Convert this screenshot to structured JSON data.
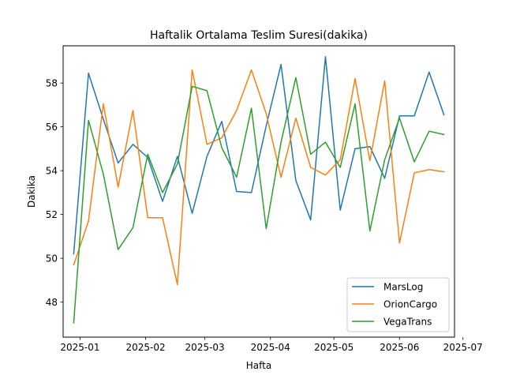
{
  "chart_data": {
    "type": "line",
    "title": "Haftalik Ortalama Teslim Suresi(dakika)",
    "xlabel": "Hafta",
    "ylabel": "Dakika",
    "x": [
      "2024-12-29",
      "2025-01-05",
      "2025-01-12",
      "2025-01-19",
      "2025-01-26",
      "2025-02-02",
      "2025-02-09",
      "2025-02-16",
      "2025-02-23",
      "2025-03-02",
      "2025-03-09",
      "2025-03-16",
      "2025-03-23",
      "2025-03-30",
      "2025-04-06",
      "2025-04-13",
      "2025-04-20",
      "2025-04-27",
      "2025-05-04",
      "2025-05-11",
      "2025-05-18",
      "2025-05-25",
      "2025-06-01",
      "2025-06-08",
      "2025-06-15",
      "2025-06-22"
    ],
    "x_ticks": [
      "2025-01",
      "2025-02",
      "2025-03",
      "2025-04",
      "2025-05",
      "2025-06",
      "2025-07"
    ],
    "x_tick_dates": [
      "2025-01-01",
      "2025-02-01",
      "2025-03-01",
      "2025-04-01",
      "2025-05-01",
      "2025-06-01",
      "2025-07-01"
    ],
    "y_ticks": [
      48,
      50,
      52,
      54,
      56,
      58
    ],
    "xlim": [
      "2024-12-24",
      "2025-06-27"
    ],
    "ylim": [
      46.4,
      59.7
    ],
    "grid": false,
    "legend_position": "lower right",
    "series": [
      {
        "name": "MarsLog",
        "color": "#1f77b4",
        "values": [
          50.2,
          58.45,
          56.35,
          54.35,
          55.2,
          54.6,
          52.6,
          54.65,
          52.05,
          54.65,
          56.25,
          53.05,
          53.0,
          56.05,
          58.85,
          53.55,
          51.75,
          59.2,
          52.2,
          55.0,
          55.1,
          53.65,
          56.5,
          56.5,
          58.5,
          56.55
        ]
      },
      {
        "name": "OrionCargo",
        "color": "#ff7f0e",
        "values": [
          49.7,
          51.7,
          57.05,
          53.25,
          56.75,
          51.85,
          51.85,
          48.8,
          58.6,
          55.2,
          55.5,
          56.75,
          58.6,
          56.6,
          53.7,
          56.4,
          54.15,
          53.8,
          54.5,
          58.2,
          54.45,
          58.1,
          50.7,
          53.9,
          54.05,
          53.95
        ]
      },
      {
        "name": "VegaTrans",
        "color": "#2ca02c",
        "values": [
          47.05,
          56.3,
          53.85,
          50.4,
          51.4,
          54.75,
          53.0,
          54.3,
          57.85,
          57.65,
          55.05,
          53.7,
          56.85,
          51.35,
          55.3,
          58.25,
          54.75,
          55.3,
          54.15,
          57.05,
          51.25,
          54.5,
          56.4,
          54.4,
          55.8,
          55.65
        ]
      }
    ]
  }
}
